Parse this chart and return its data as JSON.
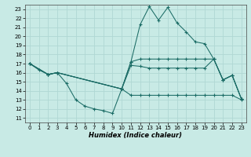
{
  "xlabel": "Humidex (Indice chaleur)",
  "background_color": "#c8eae5",
  "grid_color": "#b0d8d4",
  "line_color": "#1a6b65",
  "xlim": [
    -0.5,
    23.5
  ],
  "ylim": [
    10.5,
    23.5
  ],
  "xticks": [
    0,
    1,
    2,
    3,
    4,
    5,
    6,
    7,
    8,
    9,
    10,
    11,
    12,
    13,
    14,
    15,
    16,
    17,
    18,
    19,
    20,
    21,
    22,
    23
  ],
  "yticks": [
    11,
    12,
    13,
    14,
    15,
    16,
    17,
    18,
    19,
    20,
    21,
    22,
    23
  ],
  "line1_x": [
    0,
    1,
    2,
    3,
    10,
    11,
    12,
    13,
    14,
    15,
    16,
    17,
    18,
    19,
    20,
    21,
    22,
    23
  ],
  "line1_y": [
    17,
    16.3,
    15.8,
    16.0,
    14.2,
    17.2,
    21.3,
    23.3,
    21.8,
    23.2,
    21.5,
    20.5,
    19.4,
    19.2,
    17.5,
    15.2,
    15.7,
    13.1
  ],
  "line2_x": [
    0,
    2,
    3,
    10,
    11,
    12,
    13,
    14,
    15,
    16,
    17,
    18,
    19,
    20,
    21,
    22,
    23
  ],
  "line2_y": [
    17,
    15.8,
    16.0,
    14.2,
    17.2,
    17.5,
    17.5,
    17.5,
    17.5,
    17.5,
    17.5,
    17.5,
    17.5,
    17.5,
    15.2,
    15.7,
    13.1
  ],
  "line3_x": [
    0,
    2,
    3,
    10,
    11,
    12,
    13,
    14,
    15,
    16,
    17,
    18,
    19,
    20,
    21,
    22,
    23
  ],
  "line3_y": [
    17,
    15.8,
    16.0,
    14.2,
    16.8,
    16.7,
    16.5,
    16.5,
    16.5,
    16.5,
    16.5,
    16.5,
    16.5,
    17.5,
    15.2,
    15.7,
    13.1
  ],
  "line4_x": [
    0,
    2,
    3,
    4,
    5,
    6,
    7,
    8,
    9,
    10,
    11,
    12,
    13,
    14,
    15,
    16,
    17,
    18,
    19,
    20,
    21,
    22,
    23
  ],
  "line4_y": [
    17,
    15.8,
    16.0,
    14.8,
    13.0,
    12.3,
    12.0,
    11.8,
    11.5,
    14.2,
    13.5,
    13.5,
    13.5,
    13.5,
    13.5,
    13.5,
    13.5,
    13.5,
    13.5,
    13.5,
    13.5,
    13.5,
    13.0
  ]
}
